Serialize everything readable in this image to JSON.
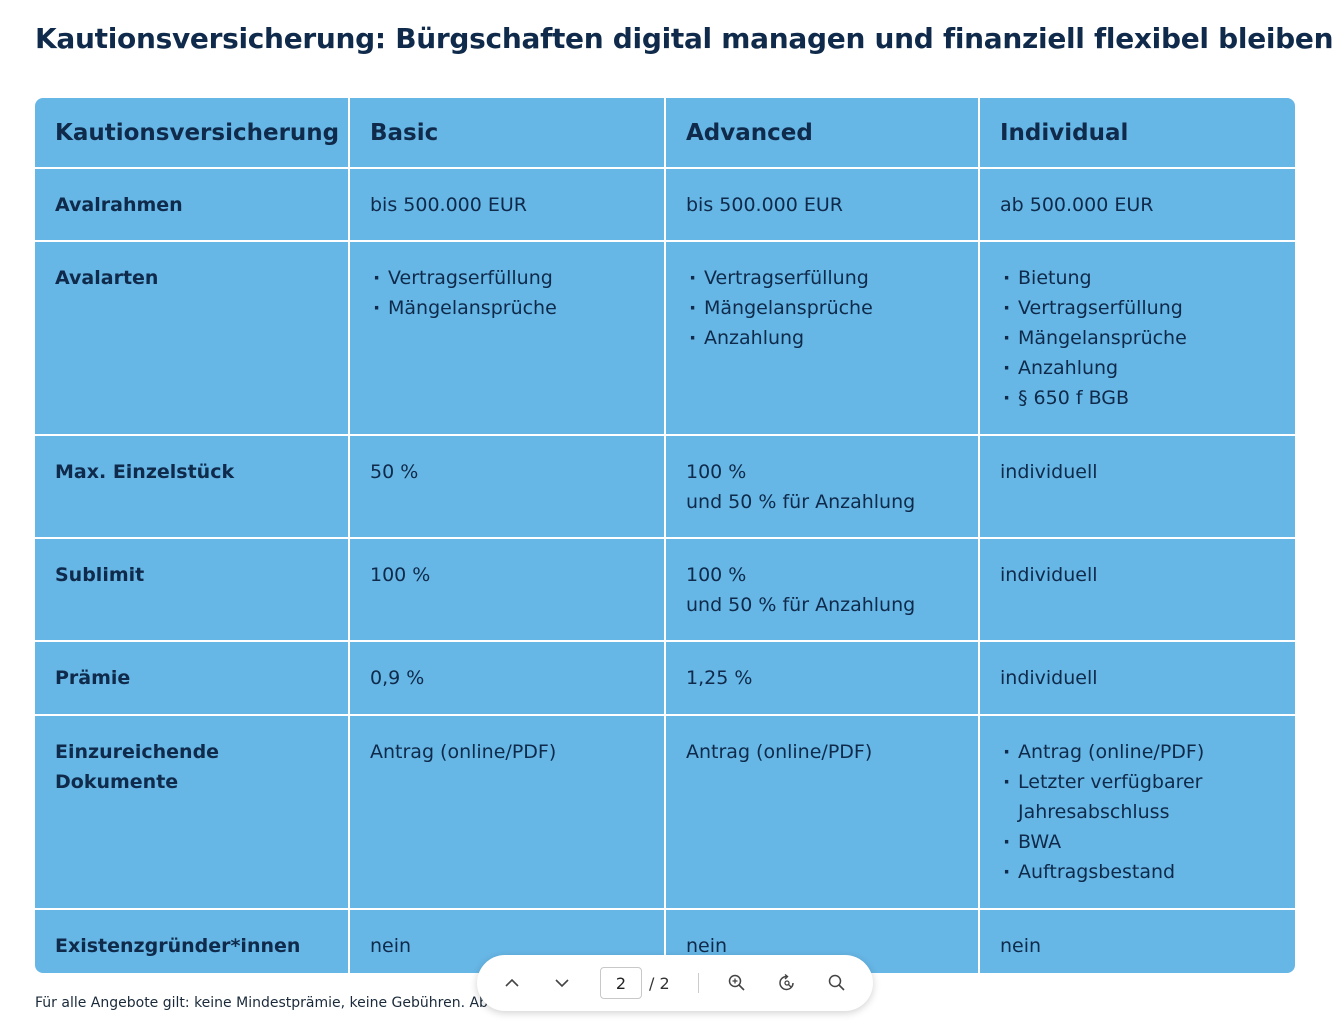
{
  "title": "Kautionsversicherung: Bürgschaften digital managen und finanziell flexibel bleiben",
  "table": {
    "headers": [
      "Kautionsversicherung",
      "Basic",
      "Advanced",
      "Individual"
    ],
    "rows": [
      {
        "label": "Avalrahmen",
        "basic": [
          "bis 500.000 EUR"
        ],
        "advanced": [
          "bis 500.000 EUR"
        ],
        "individual": [
          "ab 500.000 EUR"
        ]
      },
      {
        "label": "Avalarten",
        "basic": [
          "Vertragserfüllung",
          "Mängelansprüche"
        ],
        "advanced": [
          "Vertragserfüllung",
          "Mängelansprüche",
          "Anzahlung"
        ],
        "individual": [
          "Bietung",
          "Vertragserfüllung",
          "Mängelansprüche",
          "Anzahlung",
          "§ 650 f BGB"
        ]
      },
      {
        "label": "Max. Einzelstück",
        "basic": [
          "50 %"
        ],
        "advanced": [
          "100 %",
          "und 50 % für Anzahlung"
        ],
        "individual": [
          "individuell"
        ]
      },
      {
        "label": "Sublimit",
        "basic": [
          "100 %"
        ],
        "advanced": [
          "100 %",
          "und 50 % für Anzahlung"
        ],
        "individual": [
          "individuell"
        ]
      },
      {
        "label": "Prämie",
        "basic": [
          "0,9 %"
        ],
        "advanced": [
          "1,25 %"
        ],
        "individual": [
          "individuell"
        ]
      },
      {
        "label": "Einzureichende Dokumente",
        "basic": [
          "Antrag (online/PDF)"
        ],
        "advanced": [
          "Antrag (online/PDF)"
        ],
        "individual": [
          "Antrag (online/PDF)",
          "Letzter verfügbarer Jahresabschluss",
          "BWA",
          "Auftragsbestand"
        ]
      },
      {
        "label": "Existenzgründer*innen",
        "basic": [
          "nein"
        ],
        "advanced": [
          "nein"
        ],
        "individual": [
          "nein"
        ]
      }
    ]
  },
  "footnote": "Für alle Angebote gilt: keine Mindestprämie, keine Gebühren. Ab",
  "viewer": {
    "current_page": "2",
    "total_pages": "/ 2",
    "icons": [
      "chevron-up-icon",
      "chevron-down-icon",
      "zoom-in-icon",
      "rotate-icon",
      "search-icon"
    ]
  },
  "colors": {
    "table_bg": "#66b6e6",
    "text": "#0f2a4a",
    "grid": "#ffffff"
  }
}
